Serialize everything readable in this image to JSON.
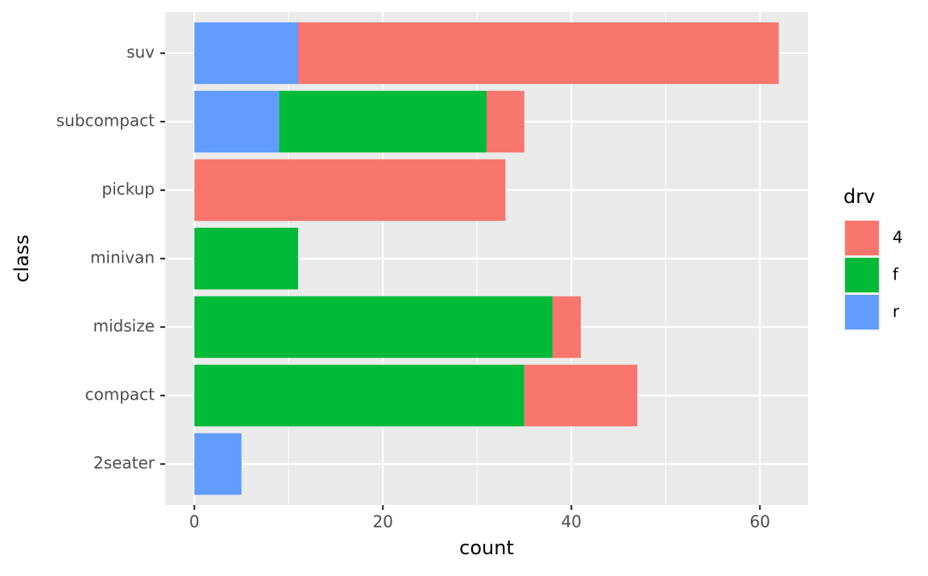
{
  "chart_data": {
    "type": "stacked-bar-horizontal",
    "x_label": "count",
    "y_label": "class",
    "categories": [
      "2seater",
      "compact",
      "midsize",
      "minivan",
      "pickup",
      "subcompact",
      "suv"
    ],
    "series": [
      {
        "name": "4",
        "color": "#F8766D",
        "values": [
          null,
          12,
          3,
          null,
          33,
          4,
          51
        ]
      },
      {
        "name": "f",
        "color": "#00BA38",
        "values": [
          null,
          35,
          38,
          11,
          null,
          22,
          null
        ]
      },
      {
        "name": "r",
        "color": "#619CFF",
        "values": [
          5,
          null,
          null,
          null,
          null,
          9,
          11
        ]
      }
    ],
    "legend_title": "drv",
    "xlim": [
      -3.1,
      65.1
    ],
    "xticks": [
      0,
      20,
      40,
      60
    ],
    "grid": true
  }
}
